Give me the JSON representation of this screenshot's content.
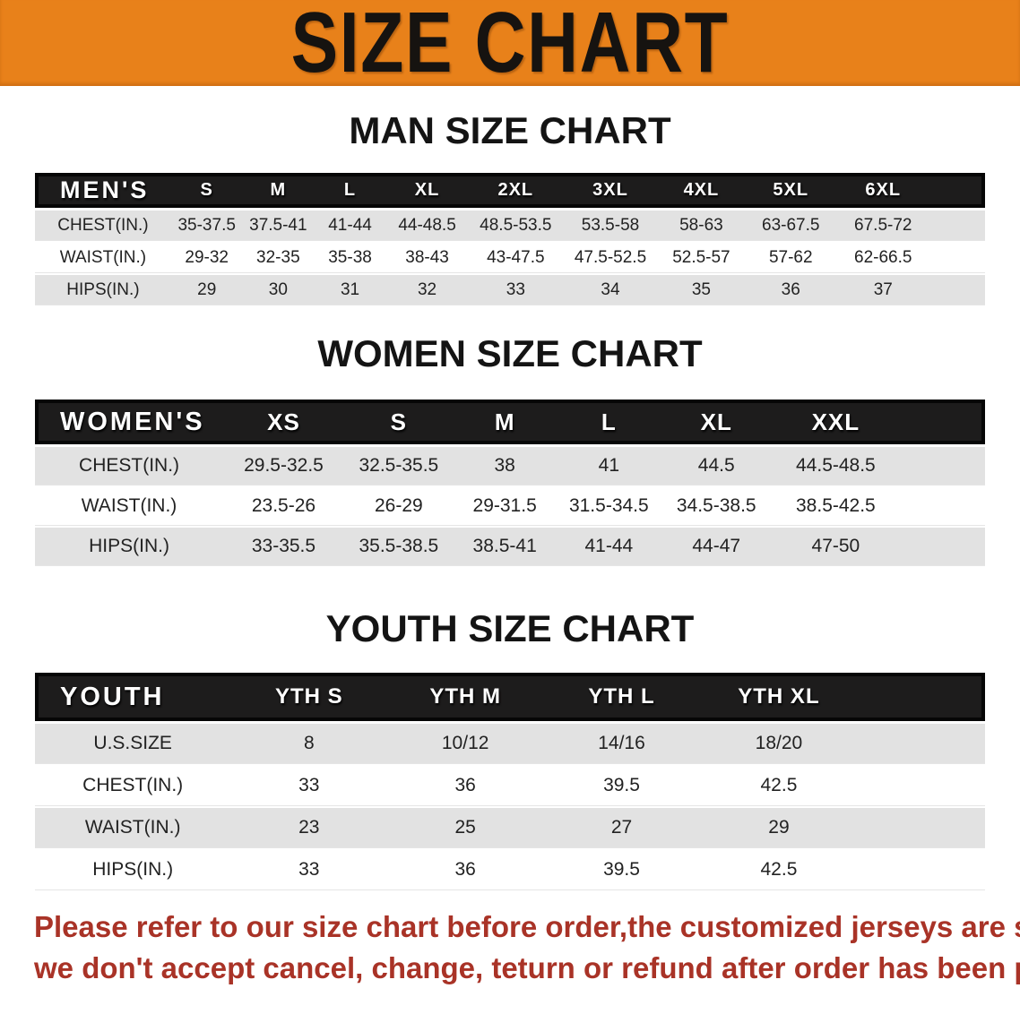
{
  "banner": {
    "title": "SIZE CHART"
  },
  "colors": {
    "banner_bg": "#e8811a",
    "header_bar": "#1d1c1c",
    "row_stripe": "#e2e2e2",
    "footer_text": "#a93327",
    "heading_text": "#141414"
  },
  "sections": {
    "men": {
      "heading": "MAN SIZE CHART",
      "table": {
        "corner_label": "MEN'S",
        "columns": [
          "S",
          "M",
          "L",
          "XL",
          "2XL",
          "3XL",
          "4XL",
          "5XL",
          "6XL"
        ],
        "rows": [
          {
            "label": "CHEST(IN.)",
            "values": [
              "35-37.5",
              "37.5-41",
              "41-44",
              "44-48.5",
              "48.5-53.5",
              "53.5-58",
              "58-63",
              "63-67.5",
              "67.5-72"
            ]
          },
          {
            "label": "WAIST(IN.)",
            "values": [
              "29-32",
              "32-35",
              "35-38",
              "38-43",
              "43-47.5",
              "47.5-52.5",
              "52.5-57",
              "57-62",
              "62-66.5"
            ]
          },
          {
            "label": "HIPS(IN.)",
            "values": [
              "29",
              "30",
              "31",
              "32",
              "33",
              "34",
              "35",
              "36",
              "37"
            ]
          }
        ]
      }
    },
    "women": {
      "heading": "WOMEN SIZE CHART",
      "table": {
        "corner_label": "WOMEN'S",
        "columns": [
          "XS",
          "S",
          "M",
          "L",
          "XL",
          "XXL"
        ],
        "rows": [
          {
            "label": "CHEST(IN.)",
            "values": [
              "29.5-32.5",
              "32.5-35.5",
              "38",
              "41",
              "44.5",
              "44.5-48.5"
            ]
          },
          {
            "label": "WAIST(IN.)",
            "values": [
              "23.5-26",
              "26-29",
              "29-31.5",
              "31.5-34.5",
              "34.5-38.5",
              "38.5-42.5"
            ]
          },
          {
            "label": "HIPS(IN.)",
            "values": [
              "33-35.5",
              "35.5-38.5",
              "38.5-41",
              "41-44",
              "44-47",
              "47-50"
            ]
          }
        ]
      }
    },
    "youth": {
      "heading": "YOUTH SIZE CHART",
      "table": {
        "corner_label": "YOUTH",
        "columns": [
          "YTH S",
          "YTH M",
          "YTH L",
          "YTH XL"
        ],
        "rows": [
          {
            "label": "U.S.SIZE",
            "values": [
              "8",
              "10/12",
              "14/16",
              "18/20"
            ]
          },
          {
            "label": "CHEST(IN.)",
            "values": [
              "33",
              "36",
              "39.5",
              "42.5"
            ]
          },
          {
            "label": "WAIST(IN.)",
            "values": [
              "23",
              "25",
              "27",
              "29"
            ]
          },
          {
            "label": "HIPS(IN.)",
            "values": [
              "33",
              "36",
              "39.5",
              "42.5"
            ]
          }
        ]
      }
    }
  },
  "footer": {
    "line1": "Please refer to our size chart before order,the customized jerseys are special products,",
    "line2": "we don't accept cancel, change, teturn or refund after order has been placed!"
  }
}
